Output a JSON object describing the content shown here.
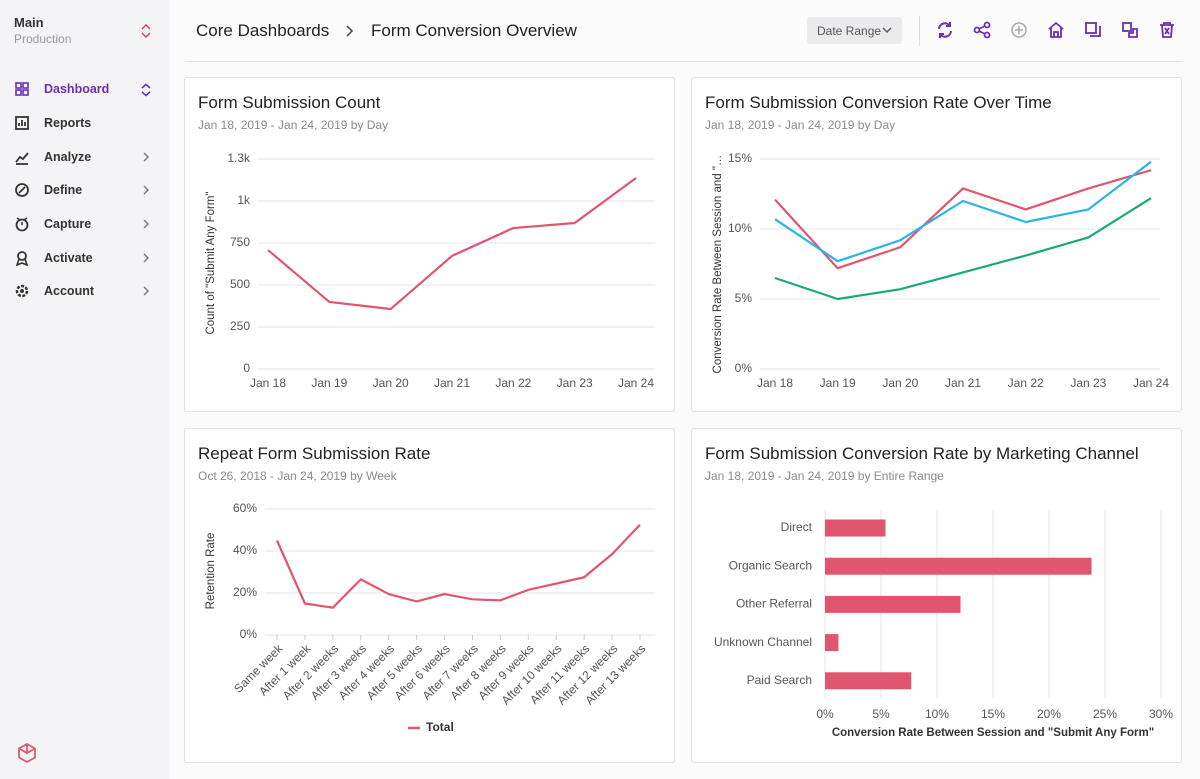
{
  "sidebar": {
    "workspace": "Main",
    "environment": "Production",
    "nav": [
      "Dashboard",
      "Reports",
      "Analyze",
      "Define",
      "Capture",
      "Activate",
      "Account"
    ]
  },
  "header": {
    "breadcrumb": [
      "Core Dashboards",
      "Form Conversion Overview"
    ],
    "date_range": "Date Range"
  },
  "chart_data": [
    {
      "type": "line",
      "title": "Form Submission Count",
      "subtitle": "Jan 18, 2019 - Jan 24, 2019 by Day",
      "y_label": "Count of \"Submit Any Form\"",
      "categories": [
        "Jan 18",
        "Jan 19",
        "Jan 20",
        "Jan 21",
        "Jan 22",
        "Jan 23",
        "Jan 24"
      ],
      "series": [
        {
          "color": "#e0566e",
          "values": [
            708,
            399,
            357,
            673,
            839,
            869,
            1137
          ]
        }
      ],
      "ylim": [
        0,
        1250
      ],
      "yticks": [
        0,
        250,
        500,
        750,
        {
          "value": 1000,
          "label": "1k"
        },
        {
          "value": 1250,
          "label": "1.3k"
        }
      ],
      "grid": true
    },
    {
      "type": "line",
      "title": "Form Submission Conversion Rate Over Time",
      "subtitle": "Jan 18, 2019 - Jan 24, 2019 by Day",
      "y_label": "Conversion Rate Between Session and \"…",
      "categories": [
        "Jan 18",
        "Jan 19",
        "Jan 20",
        "Jan 21",
        "Jan 22",
        "Jan 23",
        "Jan 24"
      ],
      "series": [
        {
          "color": "#e0566e",
          "values": [
            12.1,
            7.2,
            8.7,
            12.9,
            11.4,
            12.9,
            14.2
          ]
        },
        {
          "color": "#29b5e8",
          "values": [
            10.7,
            7.7,
            9.2,
            12.0,
            10.5,
            11.4,
            14.8
          ]
        },
        {
          "color": "#1aab74",
          "values": [
            6.5,
            5.0,
            5.7,
            6.9,
            8.1,
            9.4,
            12.2
          ]
        }
      ],
      "ylim": [
        0,
        15
      ],
      "yticks": [
        {
          "value": 0,
          "label": "0%"
        },
        {
          "value": 5,
          "label": "5%"
        },
        {
          "value": 10,
          "label": "10%"
        },
        {
          "value": 15,
          "label": "15%"
        }
      ],
      "grid": true
    },
    {
      "type": "line",
      "title": "Repeat Form Submission Rate",
      "subtitle": "Oct 26, 2018 - Jan 24, 2019 by Week",
      "y_label": "Retention Rate",
      "categories": [
        "Same week",
        "After 1 week",
        "After 2 weeks",
        "After 3 weeks",
        "After 4 weeks",
        "After 5 weeks",
        "After 6 weeks",
        "After 7 weeks",
        "After 8 weeks",
        "After 9 weeks",
        "After 10 weeks",
        "After 11 weeks",
        "After 12 weeks",
        "After 13 weeks"
      ],
      "series": [
        {
          "name": "Total",
          "color": "#e0566e",
          "values": [
            45,
            15,
            13,
            26.5,
            19.5,
            16,
            19.5,
            17,
            16.5,
            21.5,
            24.5,
            27.5,
            38.5,
            52.5
          ]
        }
      ],
      "ylim": [
        0,
        60
      ],
      "yticks": [
        {
          "value": 0,
          "label": "0%"
        },
        {
          "value": 20,
          "label": "20%"
        },
        {
          "value": 40,
          "label": "40%"
        },
        {
          "value": 60,
          "label": "60%"
        }
      ],
      "grid": true
    },
    {
      "type": "hbar",
      "title": "Form Submission Conversion Rate by Marketing Channel",
      "subtitle": "Jan 18, 2019 - Jan 24, 2019 by Entire Range",
      "x_label": "Conversion Rate Between Session and \"Submit Any Form\"",
      "categories": [
        "Direct",
        "Organic Search",
        "Other Referral",
        "Unknown Channel",
        "Paid Search"
      ],
      "values": [
        5.4,
        23.8,
        12.1,
        1.2,
        7.7
      ],
      "color": "#e0566e",
      "xlim": [
        0,
        30
      ],
      "xticks": [
        {
          "value": 0,
          "label": "0%"
        },
        {
          "value": 5,
          "label": "5%"
        },
        {
          "value": 10,
          "label": "10%"
        },
        {
          "value": 15,
          "label": "15%"
        },
        {
          "value": 20,
          "label": "20%"
        },
        {
          "value": 25,
          "label": "25%"
        },
        {
          "value": 30,
          "label": "30%"
        }
      ],
      "grid": true
    }
  ]
}
